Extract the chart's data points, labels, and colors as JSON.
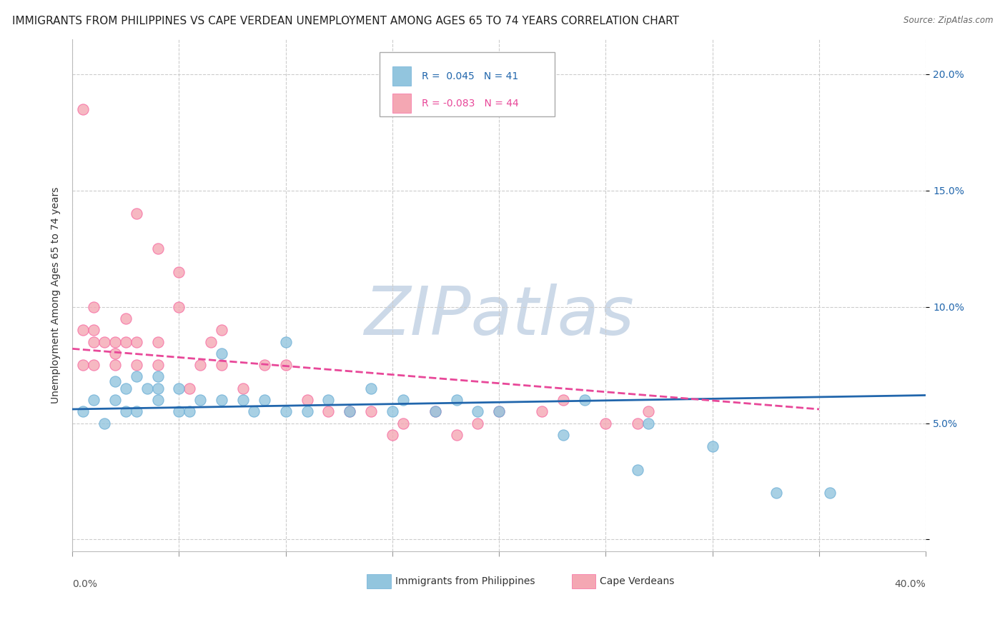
{
  "title": "IMMIGRANTS FROM PHILIPPINES VS CAPE VERDEAN UNEMPLOYMENT AMONG AGES 65 TO 74 YEARS CORRELATION CHART",
  "source": "Source: ZipAtlas.com",
  "ylabel": "Unemployment Among Ages 65 to 74 years",
  "xlim": [
    0.0,
    0.4
  ],
  "ylim": [
    -0.005,
    0.215
  ],
  "xticks": [
    0.0,
    0.05,
    0.1,
    0.15,
    0.2,
    0.25,
    0.3,
    0.35,
    0.4
  ],
  "yticks": [
    0.0,
    0.05,
    0.1,
    0.15,
    0.2
  ],
  "right_ytick_labels": [
    "",
    "5.0%",
    "10.0%",
    "15.0%",
    "20.0%"
  ],
  "blue_color": "#92c5de",
  "pink_color": "#f4a7b3",
  "blue_edge_color": "#6baed6",
  "pink_edge_color": "#f768a1",
  "blue_line_color": "#2166ac",
  "pink_line_color": "#e84899",
  "R_blue": 0.045,
  "N_blue": 41,
  "R_pink": -0.083,
  "N_pink": 44,
  "watermark": "ZIPatlas",
  "legend_labels": [
    "Immigrants from Philippines",
    "Cape Verdeans"
  ],
  "blue_points_x": [
    0.005,
    0.01,
    0.015,
    0.02,
    0.02,
    0.025,
    0.025,
    0.03,
    0.03,
    0.035,
    0.04,
    0.04,
    0.04,
    0.05,
    0.05,
    0.055,
    0.06,
    0.07,
    0.07,
    0.08,
    0.085,
    0.09,
    0.1,
    0.1,
    0.11,
    0.12,
    0.13,
    0.14,
    0.15,
    0.155,
    0.17,
    0.18,
    0.19,
    0.2,
    0.23,
    0.24,
    0.265,
    0.27,
    0.3,
    0.33,
    0.355
  ],
  "blue_points_y": [
    0.055,
    0.06,
    0.05,
    0.06,
    0.068,
    0.055,
    0.065,
    0.055,
    0.07,
    0.065,
    0.06,
    0.065,
    0.07,
    0.055,
    0.065,
    0.055,
    0.06,
    0.06,
    0.08,
    0.06,
    0.055,
    0.06,
    0.055,
    0.085,
    0.055,
    0.06,
    0.055,
    0.065,
    0.055,
    0.06,
    0.055,
    0.06,
    0.055,
    0.055,
    0.045,
    0.06,
    0.03,
    0.05,
    0.04,
    0.02,
    0.02
  ],
  "pink_points_x": [
    0.005,
    0.005,
    0.005,
    0.01,
    0.01,
    0.01,
    0.01,
    0.015,
    0.02,
    0.02,
    0.02,
    0.025,
    0.025,
    0.03,
    0.03,
    0.03,
    0.04,
    0.04,
    0.04,
    0.05,
    0.05,
    0.055,
    0.06,
    0.065,
    0.07,
    0.07,
    0.08,
    0.09,
    0.1,
    0.11,
    0.12,
    0.13,
    0.14,
    0.15,
    0.155,
    0.17,
    0.18,
    0.19,
    0.2,
    0.22,
    0.23,
    0.25,
    0.265,
    0.27
  ],
  "pink_points_y": [
    0.185,
    0.075,
    0.09,
    0.075,
    0.085,
    0.09,
    0.1,
    0.085,
    0.075,
    0.08,
    0.085,
    0.085,
    0.095,
    0.075,
    0.085,
    0.14,
    0.075,
    0.085,
    0.125,
    0.1,
    0.115,
    0.065,
    0.075,
    0.085,
    0.075,
    0.09,
    0.065,
    0.075,
    0.075,
    0.06,
    0.055,
    0.055,
    0.055,
    0.045,
    0.05,
    0.055,
    0.045,
    0.05,
    0.055,
    0.055,
    0.06,
    0.05,
    0.05,
    0.055
  ],
  "blue_line_x0": 0.0,
  "blue_line_x1": 0.4,
  "blue_line_y0": 0.056,
  "blue_line_y1": 0.062,
  "pink_line_x0": 0.0,
  "pink_line_x1": 0.35,
  "pink_line_y0": 0.082,
  "pink_line_y1": 0.056,
  "background_color": "#ffffff",
  "grid_color": "#cccccc",
  "title_fontsize": 11,
  "axis_label_fontsize": 10,
  "tick_fontsize": 10,
  "watermark_color": "#ccd9e8",
  "watermark_fontsize": 68
}
